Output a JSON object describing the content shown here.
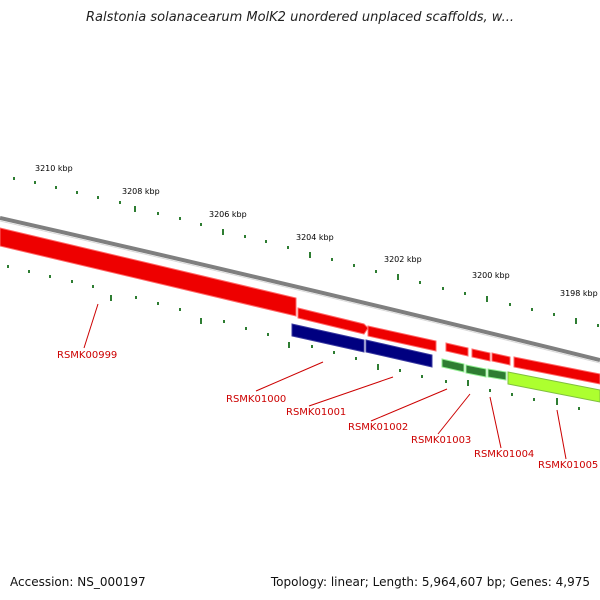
{
  "title": "Ralstonia solanacearum MolK2 unordered unplaced scaffolds, w...",
  "footer": {
    "accession_label": "Accession:",
    "accession": "NS_000197",
    "topology_text": "Topology: linear; Length: 5,964,607 bp; Genes: 4,975"
  },
  "ruler": {
    "unit": "kbp",
    "tick_labels": [
      "3210 kbp",
      "3208 kbp",
      "3206 kbp",
      "3204 kbp",
      "3202 kbp",
      "3200 kbp",
      "3198 kbp"
    ]
  },
  "colors": {
    "backbone": "#888888",
    "plus_gene": "#ee0000",
    "minus_gene_dark": "#000080",
    "minus_gene_green": "#2e7d32",
    "minus_gene_lime": "#adff2f",
    "label_red": "#cc0000",
    "tick_green": "#2e7d32"
  },
  "genes": [
    {
      "label": "RSMK00999",
      "strand": "plus",
      "color_key": "plus_gene"
    },
    {
      "label": "RSMK01000",
      "strand": "plus",
      "color_key": "plus_gene"
    },
    {
      "label": "RSMK01001",
      "strand": "plus",
      "color_key": "plus_gene"
    },
    {
      "label": "RSMK01002",
      "strand": "plus",
      "color_key": "plus_gene"
    },
    {
      "label": "RSMK01003",
      "strand": "plus",
      "color_key": "plus_gene"
    },
    {
      "label": "RSMK01004",
      "strand": "plus",
      "color_key": "plus_gene"
    },
    {
      "label": "RSMK01005",
      "strand": "plus",
      "color_key": "plus_gene"
    }
  ]
}
